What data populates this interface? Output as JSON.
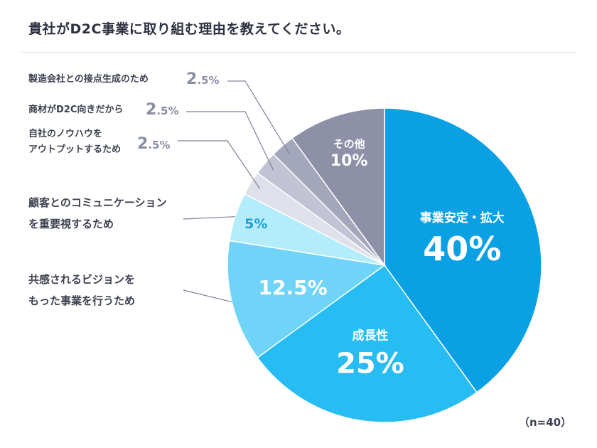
{
  "title": "貴社がD2C事業に取り組む理由を教えてください。",
  "n_label": "（n=40）",
  "chart_data": {
    "type": "pie",
    "title": "貴社がD2C事業に取り組む理由を教えてください。",
    "n": 40,
    "slices": [
      {
        "label": "事業安定・拡大",
        "value": 40,
        "pct_text": "40%",
        "color": "#0aa0e4",
        "label_color": "#ffffff"
      },
      {
        "label": "成長性",
        "value": 25,
        "pct_text": "25%",
        "color": "#27bcf2",
        "label_color": "#ffffff"
      },
      {
        "label": "共感されるビジョンをもった事業を行うため",
        "value": 12.5,
        "pct_text": "12.5%",
        "color": "#6fd4f7",
        "label_color": "#ffffff"
      },
      {
        "label": "顧客とのコミュニケーションを重要視するため",
        "value": 5,
        "pct_text": "5%",
        "color": "#b3ecfb",
        "label_color": "#1ea0d8"
      },
      {
        "label": "自社のノウハウをアウトプットするため",
        "value": 2.5,
        "pct_text": "2.5%",
        "color": "#dfe0ea",
        "label_color": "#8a8ea3"
      },
      {
        "label": "商材がD2C向きだから",
        "value": 2.5,
        "pct_text": "2.5%",
        "color": "#c1c2d3",
        "label_color": "#8a8ea3"
      },
      {
        "label": "製造会社との接点生成のため",
        "value": 2.5,
        "pct_text": "2.5%",
        "color": "#a4a6bb",
        "label_color": "#8a8ea3"
      },
      {
        "label": "その他",
        "value": 10,
        "pct_text": "10%",
        "color": "#8e90a8",
        "label_color": "#ffffff"
      }
    ]
  },
  "side_labels": {
    "seizou": {
      "text": "製造会社との接点生成のため",
      "pct_int": "2",
      "pct_dec": ".5%"
    },
    "shouzai": {
      "text": "商材がD2C向きだから",
      "pct_int": "2",
      "pct_dec": ".5%"
    },
    "jisha_l1": "自社のノウハウを",
    "jisha_l2": "アウトプットするため",
    "jisha_pct_int": "2",
    "jisha_pct_dec": ".5%",
    "kokyaku_l1": "顧客とのコミュニケーション",
    "kokyaku_l2": "を重要視するため",
    "kyoukan_l1": "共感されるビジョンを",
    "kyoukan_l2": "もった事業を行うため"
  }
}
